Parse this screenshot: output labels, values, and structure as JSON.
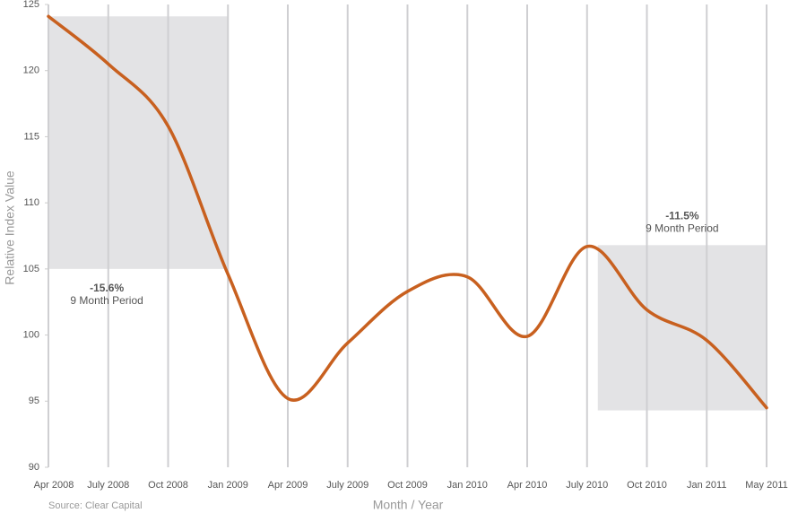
{
  "chart_data": {
    "type": "line",
    "x_label": "Month / Year",
    "y_label": "Relative Index Value",
    "source": "Source: Clear Capital",
    "categories": [
      "Apr 2008",
      "July 2008",
      "Oct 2008",
      "Jan 2009",
      "Apr 2009",
      "July 2009",
      "Oct 2009",
      "Jan 2010",
      "Apr 2010",
      "July 2010",
      "Oct 2010",
      "Jan 2011",
      "May 2011"
    ],
    "series": [
      {
        "name": "Relative Index Value",
        "color": "#c8601f",
        "values": [
          124.1,
          120.5,
          115.8,
          104.6,
          95.2,
          99.4,
          103.3,
          104.4,
          99.9,
          106.7,
          101.9,
          99.6,
          94.5
        ]
      }
    ],
    "ylim": [
      90,
      125
    ],
    "yticks": [
      90,
      95,
      100,
      105,
      110,
      115,
      120,
      125
    ],
    "grid": true,
    "highlights": [
      {
        "from": "Apr 2008",
        "to": "Jan 2009",
        "ymin": 105,
        "ymax": 124.1,
        "change": "-15.6%",
        "label": "9 Month Period",
        "color": "#e3e3e5"
      },
      {
        "from": "July 2010",
        "to": "May 2011",
        "ymin": 94.3,
        "ymax": 106.8,
        "change": "-11.5%",
        "label": "9 Month Period",
        "color": "#e3e3e5"
      }
    ]
  }
}
